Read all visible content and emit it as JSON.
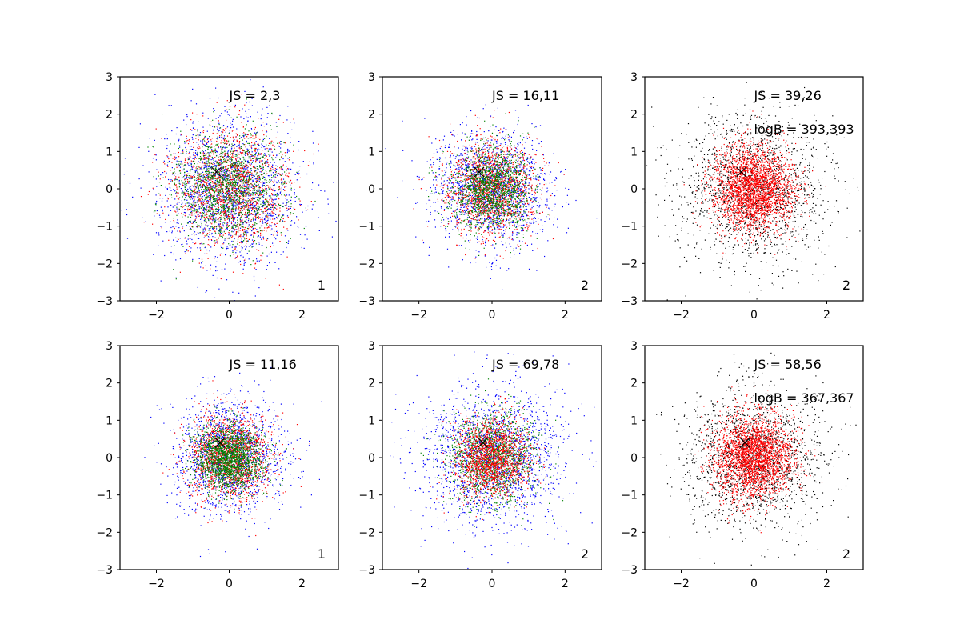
{
  "chart_data": [
    {
      "type": "scatter",
      "annotations": [
        "JS = 2,3"
      ],
      "corner_label": "1",
      "xlim": [
        -3,
        3
      ],
      "ylim": [
        -3,
        3
      ],
      "xticks": [
        "−2",
        "0",
        "2"
      ],
      "yticks": [
        "−3",
        "−2",
        "−1",
        "0",
        "1",
        "2",
        "3"
      ],
      "series": [
        {
          "color": "#0000ff",
          "spread": 0.95,
          "points": 1800
        },
        {
          "color": "#ff0000",
          "spread": 0.8,
          "points": 1500
        },
        {
          "color": "#008000",
          "spread": 0.72,
          "points": 1500
        }
      ],
      "marker": {
        "x": -0.35,
        "y": 0.45,
        "symbol": "x",
        "color": "#000000"
      }
    },
    {
      "type": "scatter",
      "annotations": [
        "JS = 16,11"
      ],
      "corner_label": "2",
      "xlim": [
        -3,
        3
      ],
      "ylim": [
        -3,
        3
      ],
      "xticks": [
        "−2",
        "0",
        "2"
      ],
      "yticks": [
        "−3",
        "−2",
        "−1",
        "0",
        "1",
        "2",
        "3"
      ],
      "series": [
        {
          "color": "#0000ff",
          "spread": 0.78,
          "points": 1600
        },
        {
          "color": "#ff0000",
          "spread": 0.62,
          "points": 1500
        },
        {
          "color": "#008000",
          "spread": 0.55,
          "points": 1500
        }
      ],
      "marker": {
        "x": -0.35,
        "y": 0.45,
        "symbol": "x",
        "color": "#000000"
      }
    },
    {
      "type": "scatter",
      "annotations": [
        "JS = 39,26",
        "logB = 393,393"
      ],
      "corner_label": "2",
      "xlim": [
        -3,
        3
      ],
      "ylim": [
        -3,
        3
      ],
      "xticks": [
        "−2",
        "0",
        "2"
      ],
      "yticks": [
        "−3",
        "−2",
        "−1",
        "0",
        "1",
        "2",
        "3"
      ],
      "series": [
        {
          "color": "#000000",
          "spread": 1.0,
          "points": 1700
        },
        {
          "color": "#ff0000",
          "spread": 0.55,
          "points": 2600
        }
      ],
      "marker": {
        "x": -0.35,
        "y": 0.45,
        "symbol": "x",
        "color": "#000000"
      }
    },
    {
      "type": "scatter",
      "annotations": [
        "JS = 11,16"
      ],
      "corner_label": "1",
      "xlim": [
        -3,
        3
      ],
      "ylim": [
        -3,
        3
      ],
      "xticks": [
        "−2",
        "0",
        "2"
      ],
      "yticks": [
        "−3",
        "−2",
        "−1",
        "0",
        "1",
        "2",
        "3"
      ],
      "series": [
        {
          "color": "#0000ff",
          "spread": 0.75,
          "points": 1500
        },
        {
          "color": "#ff0000",
          "spread": 0.58,
          "points": 1500
        },
        {
          "color": "#008000",
          "spread": 0.45,
          "points": 1800
        }
      ],
      "marker": {
        "x": -0.25,
        "y": 0.4,
        "symbol": "x",
        "color": "#000000"
      }
    },
    {
      "type": "scatter",
      "annotations": [
        "JS = 69,78"
      ],
      "corner_label": "2",
      "xlim": [
        -3,
        3
      ],
      "ylim": [
        -3,
        3
      ],
      "xticks": [
        "−2",
        "0",
        "2"
      ],
      "yticks": [
        "−3",
        "−2",
        "−1",
        "0",
        "1",
        "2",
        "3"
      ],
      "series": [
        {
          "color": "#0000ff",
          "spread": 0.95,
          "points": 1800
        },
        {
          "color": "#008000",
          "spread": 0.6,
          "points": 1500
        },
        {
          "color": "#ff0000",
          "spread": 0.5,
          "points": 1500
        }
      ],
      "marker": {
        "x": -0.25,
        "y": 0.4,
        "symbol": "x",
        "color": "#000000"
      }
    },
    {
      "type": "scatter",
      "annotations": [
        "JS = 58,56",
        "logB = 367,367"
      ],
      "corner_label": "2",
      "xlim": [
        -3,
        3
      ],
      "ylim": [
        -3,
        3
      ],
      "xticks": [
        "−2",
        "0",
        "2"
      ],
      "yticks": [
        "−3",
        "−2",
        "−1",
        "0",
        "1",
        "2",
        "3"
      ],
      "series": [
        {
          "color": "#000000",
          "spread": 0.95,
          "points": 1700
        },
        {
          "color": "#ff0000",
          "spread": 0.55,
          "points": 2600
        }
      ],
      "marker": {
        "x": -0.25,
        "y": 0.4,
        "symbol": "x",
        "color": "#000000"
      }
    }
  ]
}
